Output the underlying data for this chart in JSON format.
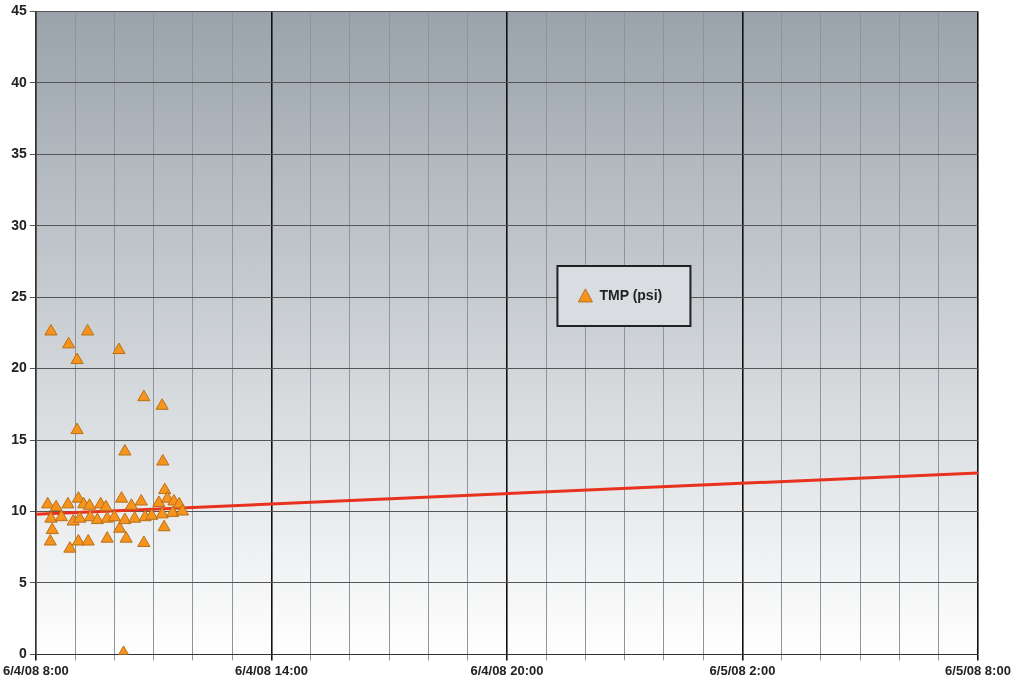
{
  "chart_data": {
    "type": "scatter",
    "xlim": [
      "--06-04T08:00",
      "--06-05T08:00"
    ],
    "xticks": [
      {
        "value": "--06-04T08:00",
        "label": "6/4/08 8:00"
      },
      {
        "value": "--06-04T09:00",
        "label": null
      },
      {
        "value": "--06-04T10:00",
        "label": null
      },
      {
        "value": "--06-04T11:00",
        "label": null
      },
      {
        "value": "--06-04T12:00",
        "label": null
      },
      {
        "value": "--06-04T13:00",
        "label": null
      },
      {
        "value": "--06-04T14:00",
        "label": "6/4/08 14:00"
      },
      {
        "value": "--06-04T15:00",
        "label": null
      },
      {
        "value": "--06-04T16:00",
        "label": null
      },
      {
        "value": "--06-04T17:00",
        "label": null
      },
      {
        "value": "--06-04T18:00",
        "label": null
      },
      {
        "value": "--06-04T19:00",
        "label": null
      },
      {
        "value": "--06-04T20:00",
        "label": "6/4/08 20:00"
      },
      {
        "value": "--06-04T21:00",
        "label": null
      },
      {
        "value": "--06-04T22:00",
        "label": null
      },
      {
        "value": "--06-04T23:00",
        "label": null
      },
      {
        "value": "--06-05T00:00",
        "label": null
      },
      {
        "value": "--06-05T01:00",
        "label": null
      },
      {
        "value": "--06-05T02:00",
        "label": "6/5/08 2:00"
      },
      {
        "value": "--06-05T03:00",
        "label": null
      },
      {
        "value": "--06-05T04:00",
        "label": null
      },
      {
        "value": "--06-05T05:00",
        "label": null
      },
      {
        "value": "--06-05T06:00",
        "label": null
      },
      {
        "value": "--06-05T07:00",
        "label": null
      },
      {
        "value": "--06-05T08:00",
        "label": "6/5/08 8:00"
      }
    ],
    "ylim": [
      0,
      45
    ],
    "yticks": [
      0,
      5,
      10,
      15,
      20,
      25,
      30,
      35,
      40,
      45
    ],
    "grid": true,
    "legend": "center",
    "marker": "triangle",
    "series": [
      {
        "name": "TMP (psi)",
        "type": "scatter",
        "color": "#f7941d",
        "x": [
          "--06-04T08:23",
          "--06-04T09:19",
          "--06-04T08:50",
          "--06-04T09:03",
          "--06-04T10:07",
          "--06-04T10:45",
          "--06-04T11:13",
          "--06-04T09:03",
          "--06-04T10:16",
          "--06-04T11:14",
          "--06-04T11:17",
          "--06-04T11:16",
          "--06-04T08:25",
          "--06-04T08:22",
          "--06-04T08:52",
          "--06-04T09:05",
          "--06-04T09:20",
          "--06-04T09:49",
          "--06-04T10:08",
          "--06-04T10:18",
          "--06-04T10:45",
          "--06-04T10:14",
          "--06-04T08:18",
          "--06-04T08:31",
          "--06-04T08:49",
          "--06-04T09:05",
          "--06-04T09:13",
          "--06-04T09:22",
          "--06-04T09:39",
          "--06-04T09:47",
          "--06-04T10:11",
          "--06-04T10:26",
          "--06-04T10:41",
          "--06-04T11:08",
          "--06-04T11:21",
          "--06-04T11:31",
          "--06-04T11:39",
          "--06-04T08:23",
          "--06-04T08:39",
          "--06-04T08:57",
          "--06-04T09:07",
          "--06-04T09:23",
          "--06-04T09:34",
          "--06-04T09:49",
          "--06-04T10:00",
          "--06-04T10:16",
          "--06-04T10:31",
          "--06-04T10:47",
          "--06-04T10:57",
          "--06-04T11:13",
          "--06-04T11:29",
          "--06-04T11:44"
        ],
        "values": [
          22.6,
          22.6,
          21.7,
          20.6,
          21.3,
          18.0,
          17.4,
          15.7,
          14.2,
          13.5,
          11.5,
          8.9,
          8.7,
          7.9,
          7.4,
          7.9,
          7.9,
          8.1,
          8.8,
          8.1,
          7.8,
          0.1,
          10.5,
          10.3,
          10.5,
          10.9,
          10.5,
          10.4,
          10.5,
          10.3,
          10.9,
          10.4,
          10.7,
          10.6,
          10.9,
          10.7,
          10.5,
          9.5,
          9.6,
          9.3,
          9.5,
          9.6,
          9.4,
          9.5,
          9.6,
          9.4,
          9.5,
          9.6,
          9.7,
          9.8,
          9.9,
          10.0
        ]
      },
      {
        "type": "line",
        "color": "#e8321e",
        "marker": "none",
        "line_style": "solid",
        "x": [
          "--06-04T08:00",
          "--06-05T08:00"
        ],
        "values": [
          9.8,
          12.7
        ]
      }
    ]
  }
}
